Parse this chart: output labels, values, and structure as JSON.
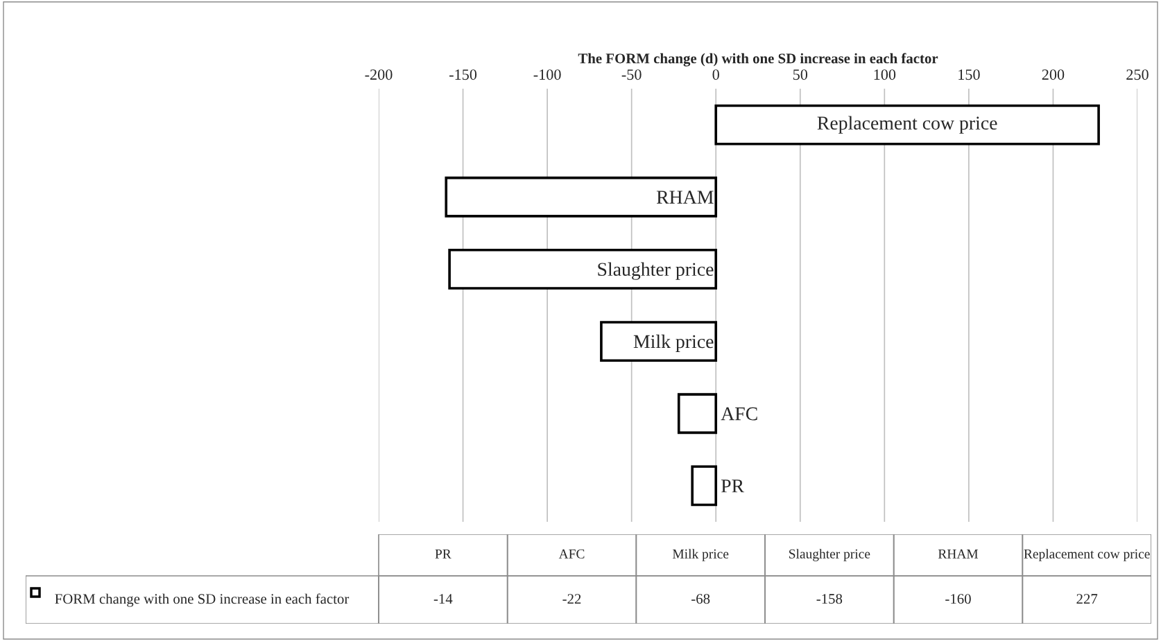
{
  "chart_data": {
    "type": "bar",
    "orientation": "horizontal",
    "xlabel": "The FORM change (d) with one SD increase in each factor",
    "categories": [
      "Replacement cow price",
      "RHAM",
      "Slaughter price",
      "Milk price",
      "AFC",
      "PR"
    ],
    "series": [
      {
        "name": "FORM change with one SD increase in each factor",
        "color": "#ffffff",
        "values": [
          227,
          -160,
          -158,
          -68,
          -22,
          -14
        ]
      }
    ],
    "xlim": [
      -200,
      250
    ],
    "xticks": [
      -200,
      -150,
      -100,
      -50,
      0,
      50,
      100,
      150,
      200,
      250
    ],
    "value_labels": [
      "227",
      "-160",
      "-158",
      "-68",
      "-22",
      "-14"
    ],
    "grid": "x",
    "tick_labels": "x",
    "legend": "bottom"
  }
}
